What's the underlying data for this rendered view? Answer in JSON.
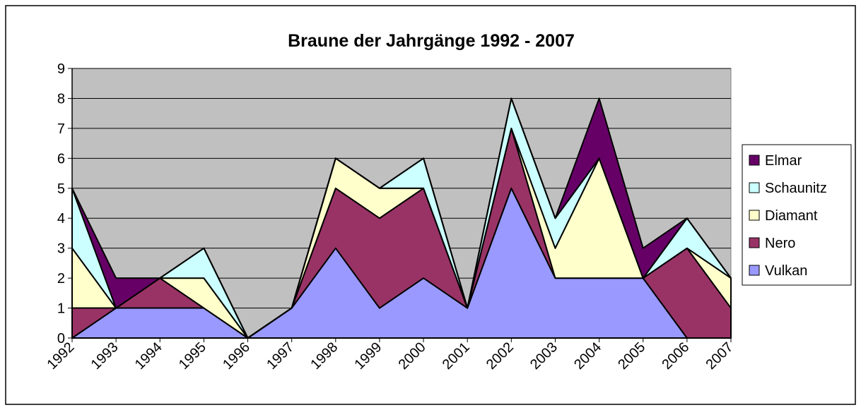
{
  "chart_data": {
    "type": "stacked_area",
    "title": "Braune der Jahrgänge 1992 - 2007",
    "categories": [
      "1992",
      "1993",
      "1994",
      "1995",
      "1996",
      "1997",
      "1998",
      "1999",
      "2000",
      "2001",
      "2002",
      "2003",
      "2004",
      "2005",
      "2006",
      "2007"
    ],
    "series": [
      {
        "name": "Vulkan",
        "color": "#9999ff",
        "values": [
          0,
          1,
          1,
          1,
          0,
          1,
          3,
          1,
          2,
          1,
          5,
          2,
          2,
          2,
          0,
          0
        ]
      },
      {
        "name": "Nero",
        "color": "#993366",
        "values": [
          1,
          0,
          1,
          0,
          0,
          0,
          2,
          3,
          3,
          0,
          2,
          0,
          0,
          0,
          3,
          1
        ]
      },
      {
        "name": "Diamant",
        "color": "#ffffcc",
        "values": [
          2,
          0,
          0,
          1,
          0,
          0,
          1,
          1,
          0,
          0,
          0,
          1,
          4,
          0,
          0,
          1
        ]
      },
      {
        "name": "Schaunitz",
        "color": "#ccffff",
        "values": [
          2,
          0,
          0,
          1,
          0,
          0,
          0,
          0,
          1,
          0,
          1,
          1,
          0,
          0,
          1,
          0
        ]
      },
      {
        "name": "Elmar",
        "color": "#660066",
        "values": [
          0,
          1,
          0,
          0,
          0,
          0,
          0,
          0,
          0,
          0,
          0,
          0,
          2,
          1,
          0,
          0
        ]
      }
    ],
    "ylim": [
      0,
      9
    ],
    "yticks": [
      0,
      1,
      2,
      3,
      4,
      5,
      6,
      7,
      8,
      9
    ],
    "grid": true,
    "legend": "right"
  }
}
